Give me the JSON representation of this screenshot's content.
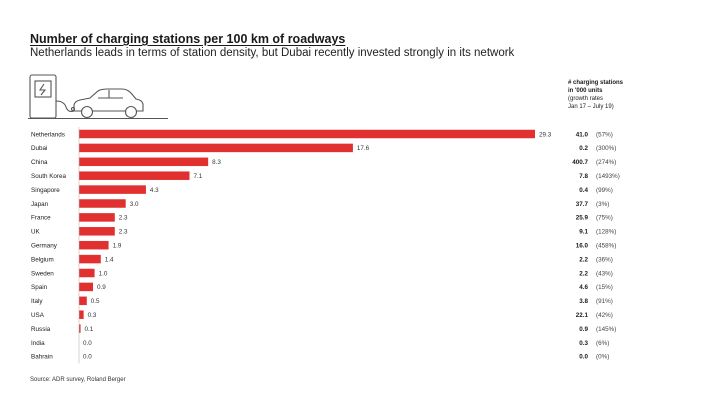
{
  "title": "Number of charging stations per 100 km of roadways",
  "subtitle": "Netherlands leads in terms of station density, but Dubai recently invested strongly in its network",
  "side_header": {
    "line1": "# charging stations",
    "line2": "in '000 units",
    "line3": "(growth rates",
    "line4": "Jan 17 – July 19)"
  },
  "source": "Source: ADR survey, Roland Berger",
  "colors": {
    "bar": "#e0302f",
    "text": "#1a1a1a",
    "line": "#555555"
  },
  "illustration_icons": [
    "charging-station-icon",
    "car-icon"
  ],
  "chart_data": {
    "type": "bar",
    "orientation": "horizontal",
    "categories": [
      "Netherlands",
      "Dubai",
      "China",
      "South Korea",
      "Singapore",
      "Japan",
      "France",
      "UK",
      "Germany",
      "Belgium",
      "Sweden",
      "Spain",
      "Italy",
      "USA",
      "Russia",
      "India",
      "Bahrain"
    ],
    "values": [
      29.3,
      17.6,
      8.3,
      7.1,
      4.3,
      3.0,
      2.3,
      2.3,
      1.9,
      1.4,
      1.0,
      0.9,
      0.5,
      0.3,
      0.1,
      0.0,
      0.0
    ],
    "value_labels": [
      "29.3",
      "17.6",
      "8.3",
      "7.1",
      "4.3",
      "3.0",
      "2.3",
      "2.3",
      "1.9",
      "1.4",
      "1.0",
      "0.9",
      "0.5",
      "0.3",
      "0.1",
      "0.0",
      "0.0"
    ],
    "stations_thousands": [
      "41.0",
      "0.2",
      "400.7",
      "7.8",
      "0.4",
      "37.7",
      "25.9",
      "9.1",
      "16.0",
      "2.2",
      "2.2",
      "4.6",
      "3.8",
      "22.1",
      "0.9",
      "0.3",
      "0.0"
    ],
    "growth_rates": [
      "(57%)",
      "(300%)",
      "(274%)",
      "(1493%)",
      "(99%)",
      "(3%)",
      "(75%)",
      "(128%)",
      "(458%)",
      "(36%)",
      "(43%)",
      "(15%)",
      "(91%)",
      "(42%)",
      "(145%)",
      "(6%)",
      "(0%)"
    ],
    "xlim": [
      0,
      29.3
    ],
    "grid": false,
    "legend": "none"
  }
}
